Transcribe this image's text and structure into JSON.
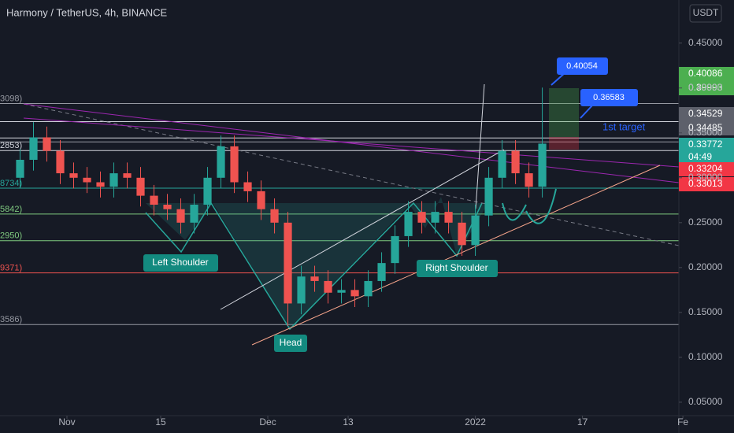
{
  "chart_data": {
    "type": "candlestick",
    "title": "Harmony / TetherUS, 4h, BINANCE",
    "currency": "USDT",
    "up_color": "#26a69a",
    "down_color": "#ef5350",
    "x": [
      -7,
      -5,
      -3,
      -1,
      1,
      3,
      5,
      7,
      9,
      11,
      13,
      15,
      17,
      19,
      21,
      23,
      25,
      27,
      29,
      31,
      33,
      35,
      37,
      39,
      41,
      43,
      45,
      47,
      49,
      51,
      53,
      55,
      57,
      59,
      61,
      63,
      65,
      67,
      69,
      71
    ],
    "open": [
      0.3,
      0.32,
      0.345,
      0.33,
      0.305,
      0.3,
      0.295,
      0.29,
      0.305,
      0.3,
      0.28,
      0.27,
      0.265,
      0.25,
      0.27,
      0.3,
      0.335,
      0.295,
      0.285,
      0.265,
      0.25,
      0.16,
      0.19,
      0.185,
      0.172,
      0.175,
      0.168,
      0.185,
      0.205,
      0.235,
      0.262,
      0.25,
      0.262,
      0.25,
      0.225,
      0.258,
      0.3,
      0.33,
      0.305,
      0.29
    ],
    "high": [
      0.332,
      0.362,
      0.357,
      0.342,
      0.317,
      0.312,
      0.307,
      0.317,
      0.317,
      0.312,
      0.292,
      0.282,
      0.277,
      0.282,
      0.312,
      0.347,
      0.347,
      0.307,
      0.297,
      0.277,
      0.262,
      0.202,
      0.202,
      0.197,
      0.187,
      0.187,
      0.197,
      0.217,
      0.247,
      0.274,
      0.274,
      0.274,
      0.274,
      0.262,
      0.27,
      0.312,
      0.342,
      0.342,
      0.317,
      0.4005
    ],
    "low": [
      0.288,
      0.308,
      0.318,
      0.293,
      0.288,
      0.283,
      0.278,
      0.278,
      0.288,
      0.268,
      0.258,
      0.253,
      0.238,
      0.238,
      0.258,
      0.288,
      0.283,
      0.273,
      0.253,
      0.238,
      0.135,
      0.148,
      0.173,
      0.16,
      0.16,
      0.156,
      0.156,
      0.173,
      0.193,
      0.223,
      0.238,
      0.238,
      0.238,
      0.213,
      0.213,
      0.246,
      0.288,
      0.293,
      0.278,
      0.278
    ],
    "close": [
      0.32,
      0.345,
      0.33,
      0.305,
      0.3,
      0.295,
      0.29,
      0.305,
      0.3,
      0.28,
      0.27,
      0.265,
      0.25,
      0.27,
      0.3,
      0.335,
      0.295,
      0.285,
      0.265,
      0.25,
      0.16,
      0.19,
      0.185,
      0.172,
      0.175,
      0.168,
      0.185,
      0.205,
      0.235,
      0.262,
      0.25,
      0.262,
      0.25,
      0.225,
      0.258,
      0.3,
      0.33,
      0.305,
      0.29,
      0.338
    ],
    "xlim": [
      -10,
      91.4
    ],
    "xticks": [
      {
        "value": 0,
        "label": "Nov"
      },
      {
        "value": 14,
        "label": "15"
      },
      {
        "value": 30,
        "label": "Dec"
      },
      {
        "value": 42,
        "label": "13"
      },
      {
        "value": 61,
        "label": "2022"
      },
      {
        "value": 77,
        "label": "17"
      },
      {
        "value": 92,
        "label": "Fe"
      }
    ],
    "ylim": [
      0.035,
      0.498
    ],
    "yticks": [
      {
        "value": 0.45,
        "label": "0.45000"
      },
      {
        "value": 0.4,
        "label": "0.40000"
      },
      {
        "value": 0.35,
        "label": "0.35000"
      },
      {
        "value": 0.3,
        "label": "0.30000"
      },
      {
        "value": 0.25,
        "label": "0.25000"
      },
      {
        "value": 0.2,
        "label": "0.20000"
      },
      {
        "value": 0.15,
        "label": "0.15000"
      },
      {
        "value": 0.1,
        "label": "0.10000"
      },
      {
        "value": 0.05,
        "label": "0.05000"
      }
    ],
    "levels": [
      {
        "value": 0.3827,
        "label": "3098)",
        "color": "#9598a1"
      },
      {
        "value": 0.3625,
        "color": "#d1d4dc"
      },
      {
        "value": 0.3443,
        "color": "#d1d4dc"
      },
      {
        "value": 0.3399,
        "color": "#9598a1"
      },
      {
        "value": 0.3303,
        "label": "2853)",
        "color": "#d1d4dc"
      },
      {
        "value": 0.2884,
        "label": "8734)",
        "color": "#26a69a"
      },
      {
        "value": 0.2596,
        "label": "5842)",
        "color": "#7fc97f"
      },
      {
        "value": 0.2299,
        "label": "2950)",
        "color": "#7fc97f"
      },
      {
        "value": 0.1941,
        "label": "9371)",
        "color": "#ef5350"
      },
      {
        "value": 0.1365,
        "label": "3586)",
        "color": "#9598a1"
      }
    ],
    "price_badges": [
      {
        "value": 0.40086,
        "color": "#4caf50"
      },
      {
        "value": 0.39993,
        "color": "#4caf50"
      },
      {
        "value": 0.34529,
        "color": "#5d606b"
      },
      {
        "value": 0.34485,
        "color": "#5d606b"
      },
      {
        "value": 0.33772,
        "color": "#26a69a"
      },
      {
        "value": 0.33204,
        "color": "#f23645"
      },
      {
        "value": 0.33013,
        "color": "#f23645"
      }
    ],
    "countdown": "04:49",
    "callouts": [
      {
        "value": 0.40054
      },
      {
        "value": 0.36583
      }
    ],
    "annotations": [
      "Left Shoulder",
      "Head",
      "Right Shoulder",
      "1st target"
    ]
  }
}
